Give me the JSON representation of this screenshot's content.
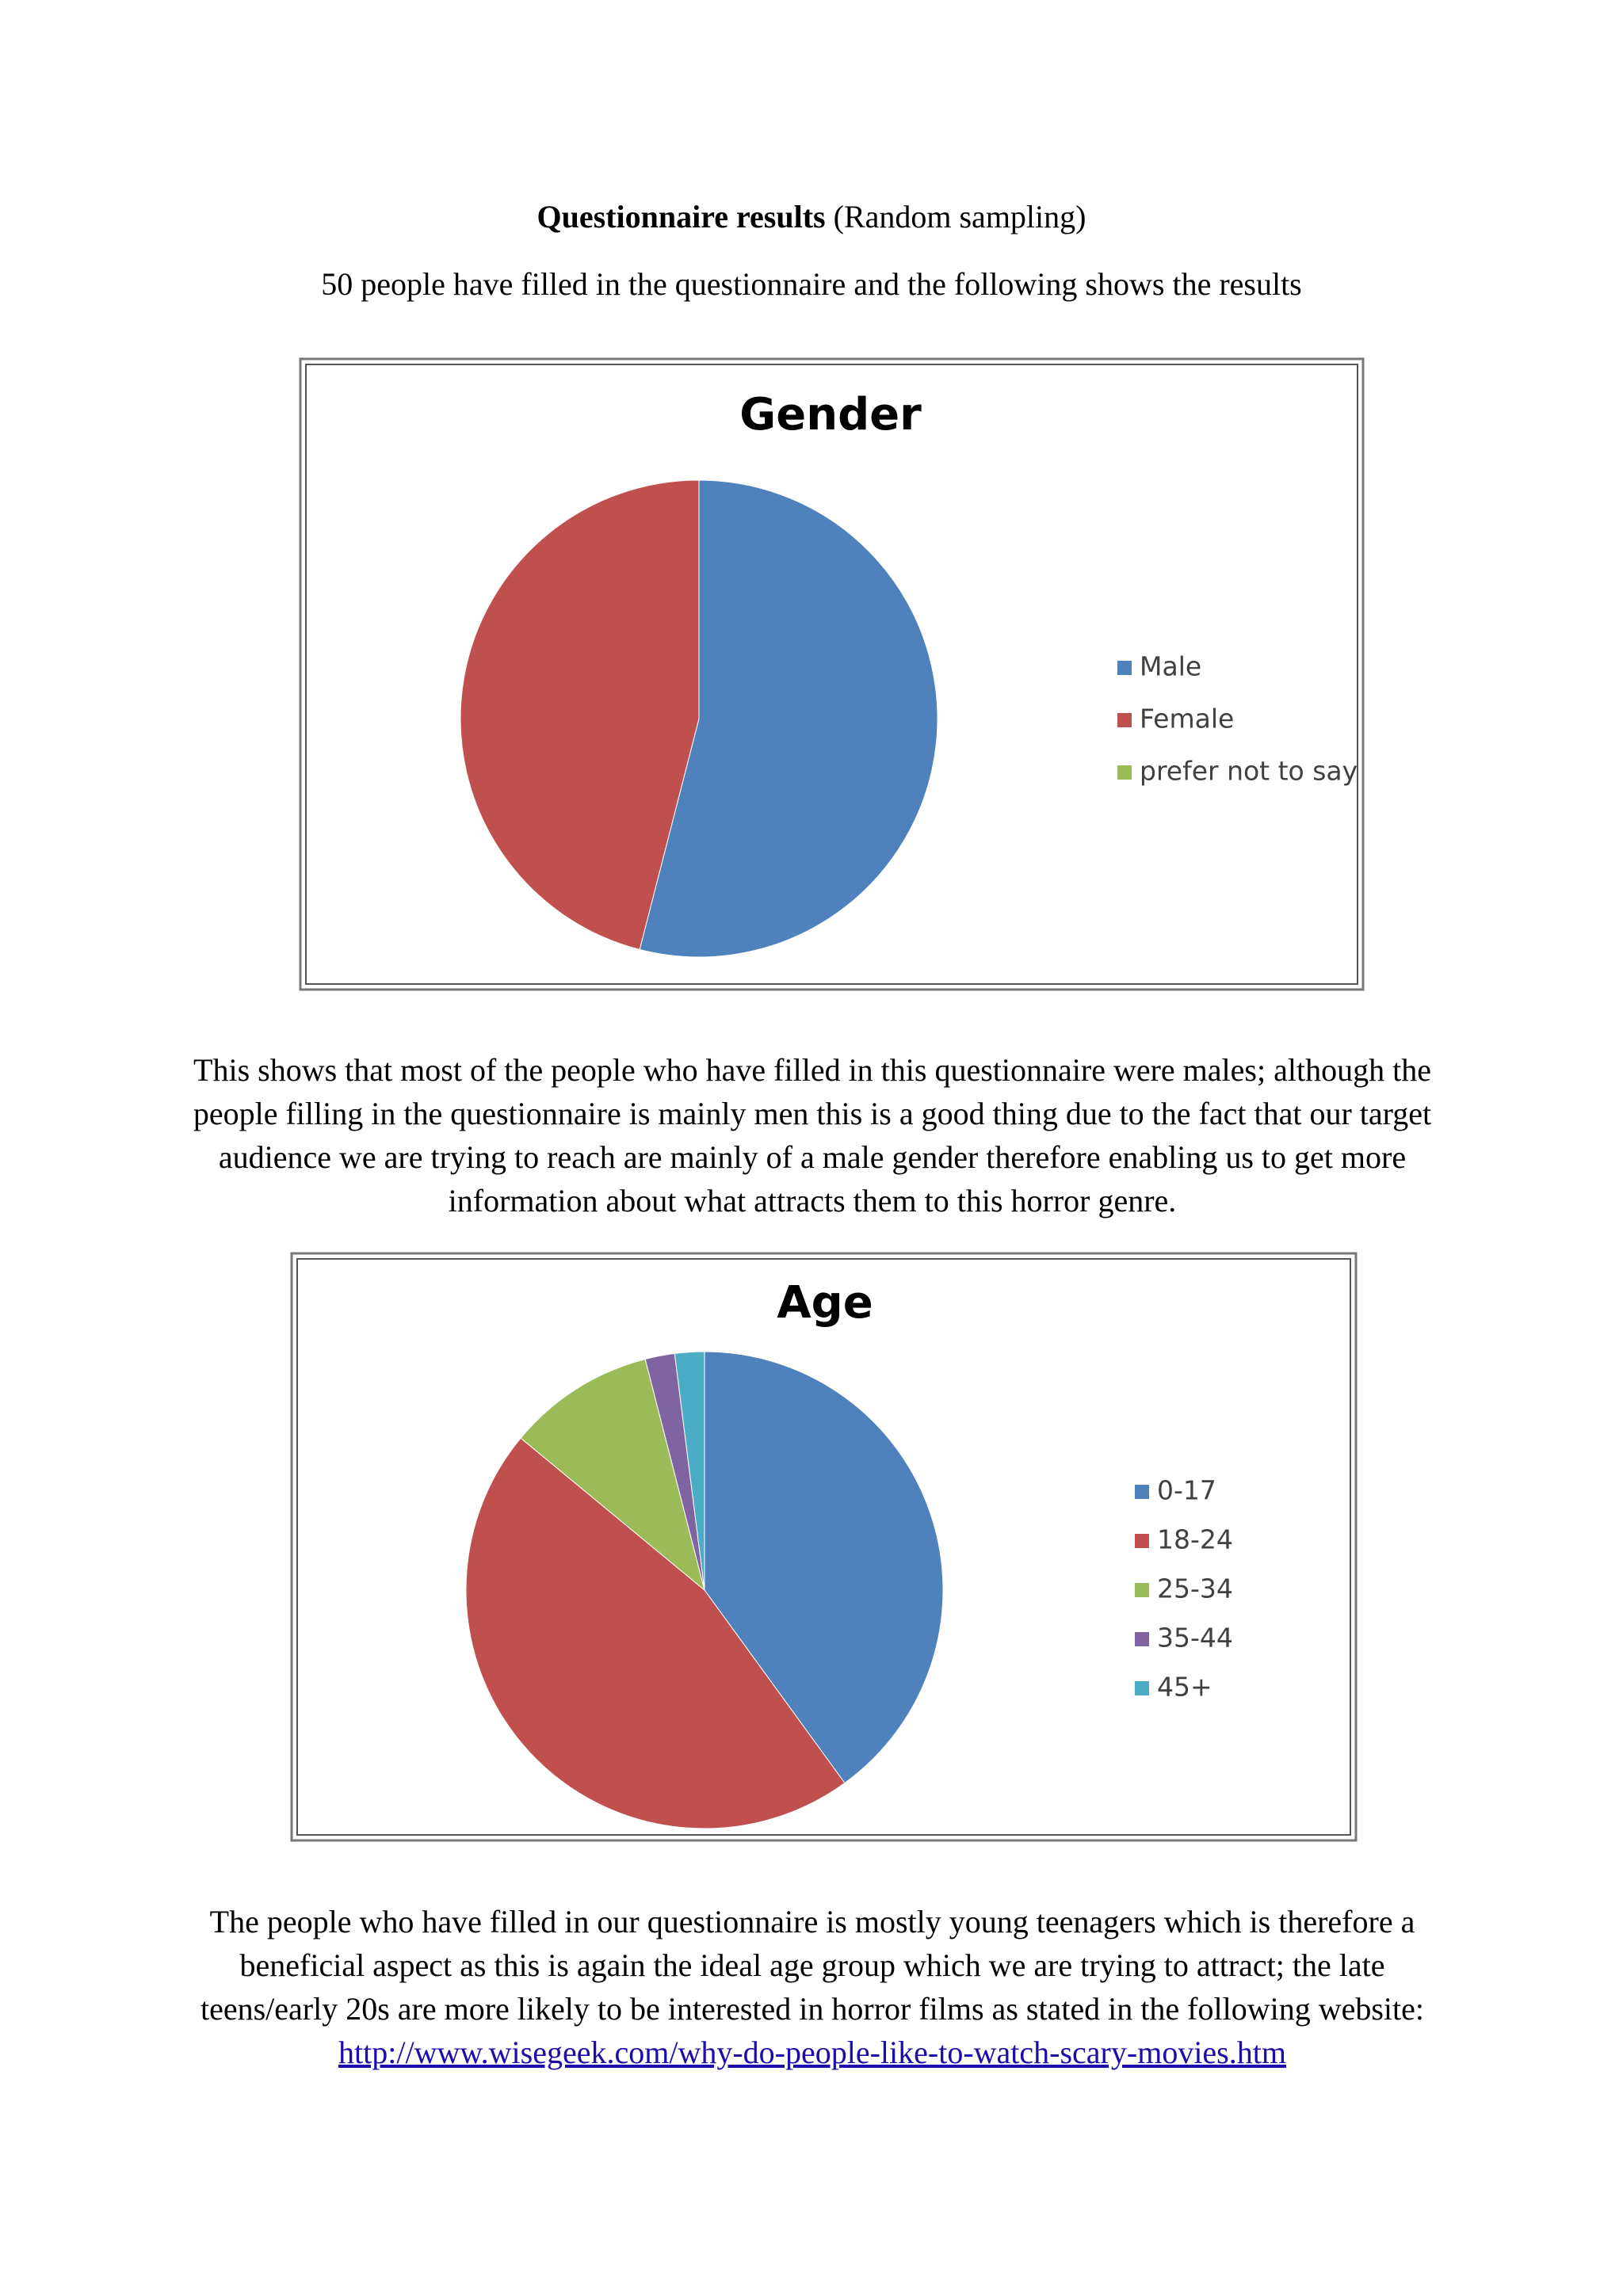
{
  "document": {
    "heading_bold": "Questionnaire results",
    "heading_rest": "(Random sampling)",
    "intro": "50 people have filled in the questionnaire and the following shows the results",
    "paragraph_1": "This shows that most of the people who have filled in this questionnaire were males; although the people filling in the questionnaire is mainly men this is a good thing due to the fact that our target audience we are trying to reach are mainly of a male gender therefore enabling us to get more information about what attracts them to this horror genre.",
    "paragraph_2": "The people who have filled in our questionnaire is mostly young teenagers which is therefore a beneficial aspect as this is again the ideal age group which we are trying to attract; the late teens/early 20s are more likely to be interested in horror films as stated in the following website:",
    "link": "http://www.wisegeek.com/why-do-people-like-to-watch-scary-movies.htm"
  },
  "chart_data": [
    {
      "type": "pie",
      "title": "Gender",
      "legend": "right",
      "categories": [
        "Male",
        "Female",
        "prefer not to say"
      ],
      "values": [
        27,
        23,
        0
      ],
      "colors": [
        "#4f81bd",
        "#c0504d",
        "#9bbb59"
      ]
    },
    {
      "type": "pie",
      "title": "Age",
      "legend": "right",
      "categories": [
        "0-17",
        "18-24",
        "25-34",
        "35-44",
        "45+"
      ],
      "values": [
        20,
        23,
        5,
        1,
        1
      ],
      "colors": [
        "#4f81bd",
        "#c0504d",
        "#9bbb59",
        "#8064a2",
        "#4bacc6"
      ]
    }
  ]
}
